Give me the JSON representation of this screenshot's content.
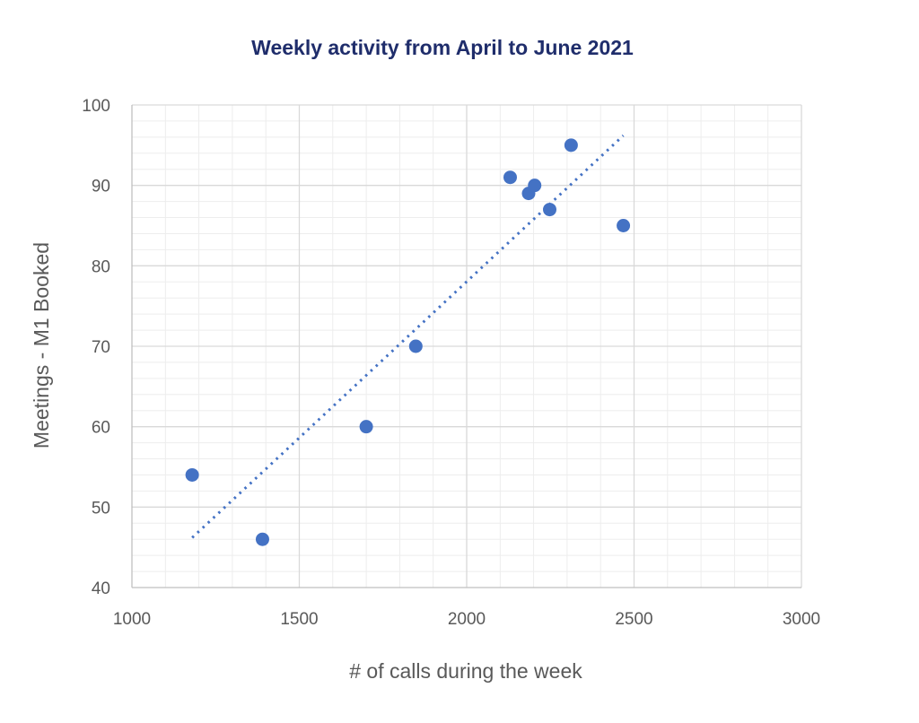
{
  "chart_data": {
    "type": "scatter",
    "title": "Weekly activity from April to June 2021",
    "xlabel": "# of calls during the week",
    "ylabel": "Meetings - M1 Booked",
    "xlim": [
      1000,
      3000
    ],
    "ylim": [
      40,
      100
    ],
    "x_ticks": [
      "1000",
      "1500",
      "2000",
      "2500",
      "3000"
    ],
    "y_ticks": [
      "40",
      "50",
      "60",
      "70",
      "80",
      "90",
      "100"
    ],
    "major_grid": true,
    "minor_grid": true,
    "legend": "none",
    "series": [
      {
        "points": [
          {
            "x": 1180,
            "y": 54
          },
          {
            "x": 1390,
            "y": 46
          },
          {
            "x": 1700,
            "y": 60
          },
          {
            "x": 1848,
            "y": 70
          },
          {
            "x": 2130,
            "y": 91
          },
          {
            "x": 2185,
            "y": 89
          },
          {
            "x": 2203,
            "y": 90
          },
          {
            "x": 2248,
            "y": 87
          },
          {
            "x": 2312,
            "y": 95
          },
          {
            "x": 2468,
            "y": 85
          }
        ],
        "trendline": {
          "type": "linear",
          "style": "dotted",
          "from": {
            "x": 1180,
            "y": 46.2
          },
          "to": {
            "x": 2468,
            "y": 96.2
          }
        }
      }
    ],
    "colors": {
      "marker": "#4472C4",
      "trendline": "#4472C4",
      "title": "#1F2D6B",
      "major_grid": "#D9D9D9",
      "minor_grid": "#EDEDED"
    }
  }
}
